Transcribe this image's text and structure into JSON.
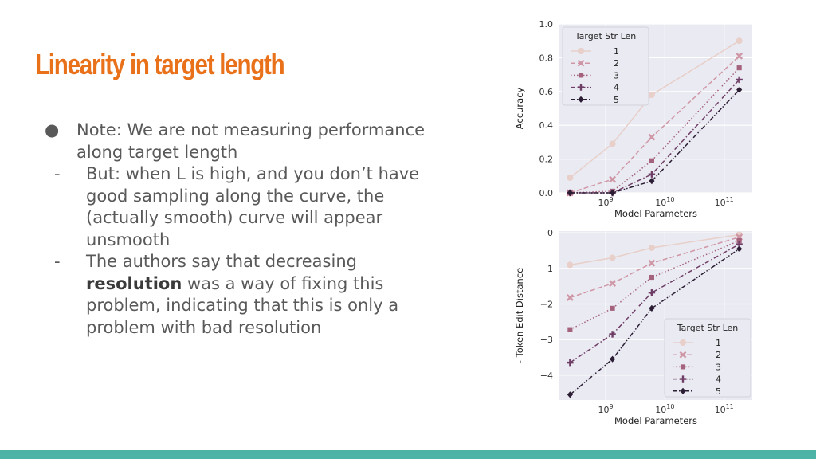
{
  "slide": {
    "title": "Linearity in target length",
    "title_color": "#e8711a",
    "accent_bar_color": "#4db3a6"
  },
  "bullets": {
    "marker": "●",
    "dash": "-",
    "main": "Note: We are not measuring performance along target length",
    "sub1": "But: when L is high, and you don’t have good sampling along the curve, the (actually smooth) curve will appear unsmooth",
    "sub2_before": "The authors say that decreasing ",
    "sub2_bold": "resolution",
    "sub2_after": " was a way of fixing this problem, indicating that this is only a problem with bad resolution"
  },
  "chart_data": [
    {
      "type": "line",
      "xlabel": "Model Parameters",
      "ylabel": "Accuracy",
      "x_scale": "log",
      "x": [
        250000000,
        1300000000,
        6000000000,
        180000000000
      ],
      "xticks": [
        {
          "value": 1000000000,
          "base": "10",
          "exp": "9"
        },
        {
          "value": 10000000000,
          "base": "10",
          "exp": "10"
        },
        {
          "value": 100000000000,
          "base": "10",
          "exp": "11"
        }
      ],
      "yticks": [
        "0.0",
        "0.2",
        "0.4",
        "0.6",
        "0.8",
        "1.0"
      ],
      "ylim": [
        0,
        1
      ],
      "grid": true,
      "legend_title": "Target Str Len",
      "legend_position": "top-left",
      "series": [
        {
          "name": "1",
          "color": "#e8cfc9",
          "marker": "circle",
          "dash": "solid",
          "values": [
            0.09,
            0.29,
            0.58,
            0.9
          ]
        },
        {
          "name": "2",
          "color": "#cf97a5",
          "marker": "x",
          "dash": "dashed",
          "values": [
            0.0,
            0.08,
            0.33,
            0.81
          ]
        },
        {
          "name": "3",
          "color": "#a4627d",
          "marker": "square",
          "dash": "dotted",
          "values": [
            0.0,
            0.01,
            0.19,
            0.74
          ]
        },
        {
          "name": "4",
          "color": "#6e3e66",
          "marker": "plus",
          "dash": "dashdot",
          "values": [
            0.0,
            0.0,
            0.11,
            0.67
          ]
        },
        {
          "name": "5",
          "color": "#2b1d33",
          "marker": "diamond",
          "dash": "dashdotdot",
          "values": [
            0.0,
            0.0,
            0.07,
            0.61
          ]
        }
      ]
    },
    {
      "type": "line",
      "xlabel": "Model Parameters",
      "ylabel": "- Token Edit Distance",
      "x_scale": "log",
      "x": [
        250000000,
        1300000000,
        6000000000,
        180000000000
      ],
      "xticks": [
        {
          "value": 1000000000,
          "base": "10",
          "exp": "9"
        },
        {
          "value": 10000000000,
          "base": "10",
          "exp": "10"
        },
        {
          "value": 100000000000,
          "base": "10",
          "exp": "11"
        }
      ],
      "yticks": [
        "−4",
        "−3",
        "−2",
        "−1",
        "0"
      ],
      "ylim": [
        -4.7,
        0.05
      ],
      "grid": true,
      "legend_title": "Target Str Len",
      "legend_position": "bottom-right",
      "series": [
        {
          "name": "1",
          "color": "#e8cfc9",
          "marker": "circle",
          "dash": "solid",
          "values": [
            -0.9,
            -0.7,
            -0.42,
            -0.05
          ]
        },
        {
          "name": "2",
          "color": "#cf97a5",
          "marker": "x",
          "dash": "dashed",
          "values": [
            -1.82,
            -1.42,
            -0.85,
            -0.12
          ]
        },
        {
          "name": "3",
          "color": "#a4627d",
          "marker": "square",
          "dash": "dotted",
          "values": [
            -2.72,
            -2.12,
            -1.25,
            -0.22
          ]
        },
        {
          "name": "4",
          "color": "#6e3e66",
          "marker": "plus",
          "dash": "dashdot",
          "values": [
            -3.65,
            -2.85,
            -1.68,
            -0.32
          ]
        },
        {
          "name": "5",
          "color": "#2b1d33",
          "marker": "diamond",
          "dash": "dashdotdot",
          "values": [
            -4.55,
            -3.55,
            -2.12,
            -0.45
          ]
        }
      ]
    }
  ]
}
